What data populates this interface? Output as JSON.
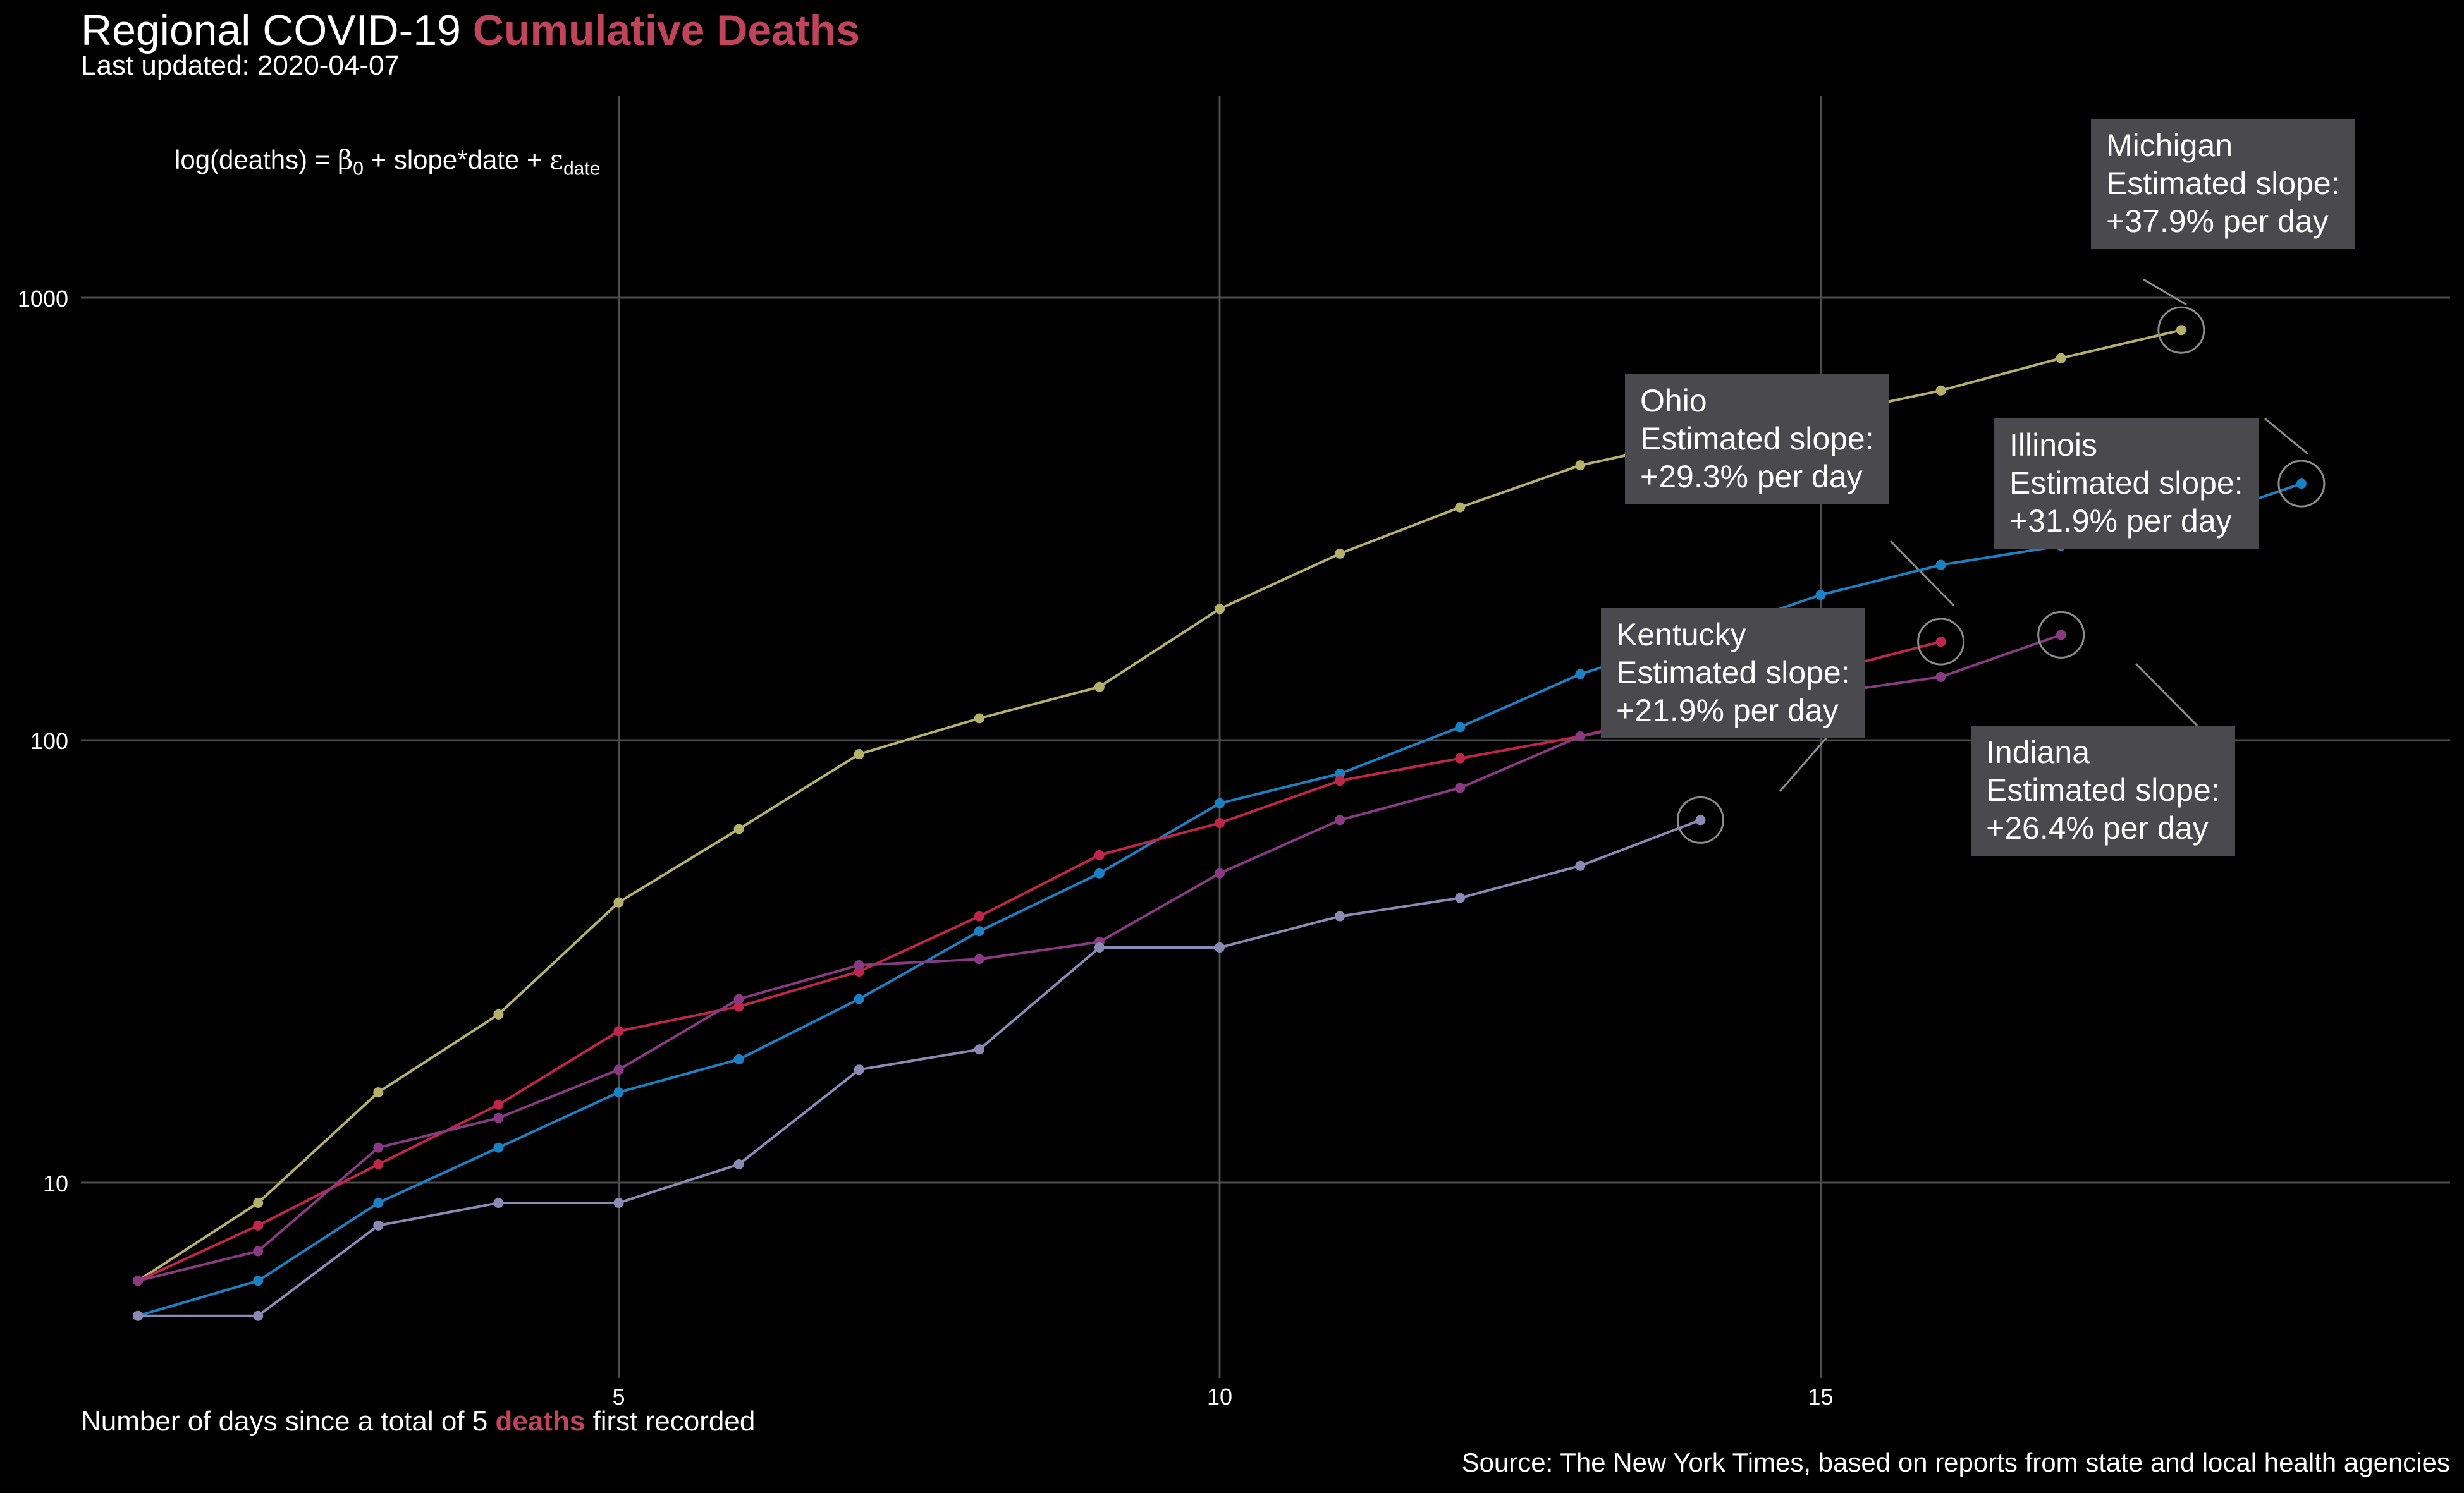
{
  "header": {
    "title_prefix": "Regional COVID-19",
    "title_accent": "Cumulative Deaths",
    "subtitle": "Last updated: 2020-04-07"
  },
  "formula": {
    "lhs": "log(deaths) = ",
    "beta": "β",
    "beta_sub": "0",
    "plus1": " + ",
    "middle": "slope*date",
    "plus2": " + ",
    "eps": "ε",
    "eps_sub": "date"
  },
  "footer": {
    "xlabel_prefix": "Number of days since a total of 5",
    "xlabel_accent": "deaths",
    "xlabel_suffix": "first recorded",
    "source": "Source: The New York Times, based on reports from state and local health agencies"
  },
  "colors": {
    "background": "#000000",
    "grid": "#4d4d4d",
    "accent": "#c0445a",
    "annotation_box": "#4a4a4e"
  },
  "chart_data": {
    "type": "line",
    "x_scale": "linear",
    "y_scale": "log",
    "xlim": [
      0.5,
      19.9
    ],
    "ylim": [
      3.3,
      2700
    ],
    "x_ticks": [
      5,
      10,
      15
    ],
    "y_ticks": [
      10,
      100,
      1000
    ],
    "y_tick_labels": [
      "10",
      "100",
      "1000"
    ],
    "x_tick_labels": [
      "5",
      "10",
      "15"
    ],
    "grid": true,
    "series": [
      {
        "name": "Michigan",
        "color": "#b5b06a",
        "x": [
          1,
          2,
          3,
          4,
          5,
          6,
          7,
          8,
          9,
          10,
          11,
          12,
          13,
          14,
          15,
          16,
          17,
          18
        ],
        "y": [
          6,
          9,
          16,
          24,
          43,
          63,
          93,
          112,
          132,
          198,
          264,
          336,
          418,
          479,
          540,
          617,
          730,
          845
        ],
        "annotation": [
          "Michigan",
          "Estimated slope:",
          "+37.9% per day"
        ]
      },
      {
        "name": "Illinois",
        "color": "#1a82c4",
        "x": [
          1,
          2,
          3,
          4,
          5,
          6,
          7,
          8,
          9,
          10,
          11,
          12,
          13,
          14,
          15,
          16,
          17,
          18,
          19
        ],
        "y": [
          5,
          6,
          9,
          12,
          16,
          19,
          26,
          37,
          50,
          72,
          84,
          107,
          141,
          172,
          213,
          249,
          275,
          307,
          380
        ],
        "annotation": [
          "Illinois",
          "Estimated slope:",
          "+31.9% per day"
        ]
      },
      {
        "name": "Ohio",
        "color": "#c0254a",
        "x": [
          1,
          2,
          3,
          4,
          5,
          6,
          7,
          8,
          9,
          10,
          11,
          12,
          13,
          14,
          15,
          16
        ],
        "y": [
          6,
          8,
          11,
          15,
          22,
          25,
          30,
          40,
          55,
          65,
          81,
          91,
          102,
          119,
          142,
          167
        ],
        "annotation": [
          "Ohio",
          "Estimated slope:",
          "+29.3% per day"
        ]
      },
      {
        "name": "Indiana",
        "color": "#8a3a82",
        "x": [
          1,
          2,
          3,
          4,
          5,
          6,
          7,
          8,
          9,
          10,
          11,
          12,
          13,
          14,
          15,
          16,
          17
        ],
        "y": [
          6,
          7,
          12,
          14,
          18,
          26,
          31,
          32,
          35,
          50,
          66,
          78,
          102,
          116,
          127,
          139,
          173
        ],
        "annotation": [
          "Indiana",
          "Estimated slope:",
          "+26.4% per day"
        ]
      },
      {
        "name": "Kentucky",
        "color": "#8a8ab5",
        "x": [
          1,
          2,
          3,
          4,
          5,
          6,
          7,
          8,
          9,
          10,
          11,
          12,
          13,
          14
        ],
        "y": [
          5,
          5,
          8,
          9,
          9,
          11,
          18,
          20,
          34,
          34,
          40,
          44,
          52,
          66
        ],
        "annotation": [
          "Kentucky",
          "Estimated slope:",
          "+21.9% per day"
        ]
      }
    ]
  }
}
